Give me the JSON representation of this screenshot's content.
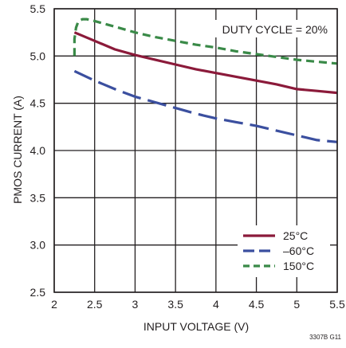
{
  "chart_data": {
    "type": "line",
    "xlabel": "INPUT VOLTAGE (V)",
    "ylabel": "PMOS CURRENT (A)",
    "xlim": [
      2,
      5.5
    ],
    "ylim": [
      2.5,
      5.5
    ],
    "x_ticks": [
      "2",
      "2.5",
      "3",
      "3.5",
      "4",
      "4.5",
      "5",
      "5.5"
    ],
    "y_ticks": [
      "2.5",
      "3.0",
      "3.5",
      "4.0",
      "4.5",
      "5.0",
      "5.5"
    ],
    "grid": true,
    "legend_position": "bottom-right",
    "annotation": "DUTY CYCLE = 20%",
    "figure_id": "3307B G11",
    "series": [
      {
        "name": "25°C",
        "color": "#8b1a3a",
        "dash": "solid",
        "x": [
          2.25,
          2.5,
          2.75,
          3.0,
          3.25,
          3.5,
          3.75,
          4.0,
          4.25,
          4.5,
          4.75,
          5.0,
          5.25,
          5.5
        ],
        "y": [
          5.25,
          5.16,
          5.07,
          5.01,
          4.96,
          4.91,
          4.86,
          4.82,
          4.78,
          4.74,
          4.7,
          4.65,
          4.63,
          4.61
        ]
      },
      {
        "name": "–60°C",
        "color": "#3b4f9f",
        "dash": "long-dash",
        "x": [
          2.25,
          2.5,
          2.75,
          3.0,
          3.25,
          3.5,
          3.75,
          4.0,
          4.25,
          4.5,
          4.75,
          5.0,
          5.25,
          5.5
        ],
        "y": [
          4.84,
          4.74,
          4.65,
          4.57,
          4.51,
          4.45,
          4.39,
          4.34,
          4.3,
          4.26,
          4.21,
          4.16,
          4.11,
          4.09
        ]
      },
      {
        "name": "150°C",
        "color": "#3a8a48",
        "dash": "short-dash",
        "x": [
          2.25,
          2.25,
          2.27,
          2.3,
          2.35,
          2.4,
          2.5,
          2.75,
          3.0,
          3.25,
          3.5,
          3.75,
          4.0,
          4.25,
          4.5,
          4.75,
          5.0,
          5.25,
          5.5
        ],
        "y": [
          5.0,
          5.18,
          5.3,
          5.37,
          5.39,
          5.39,
          5.37,
          5.31,
          5.25,
          5.2,
          5.16,
          5.12,
          5.09,
          5.05,
          5.02,
          4.99,
          4.96,
          4.94,
          4.92
        ]
      }
    ]
  }
}
